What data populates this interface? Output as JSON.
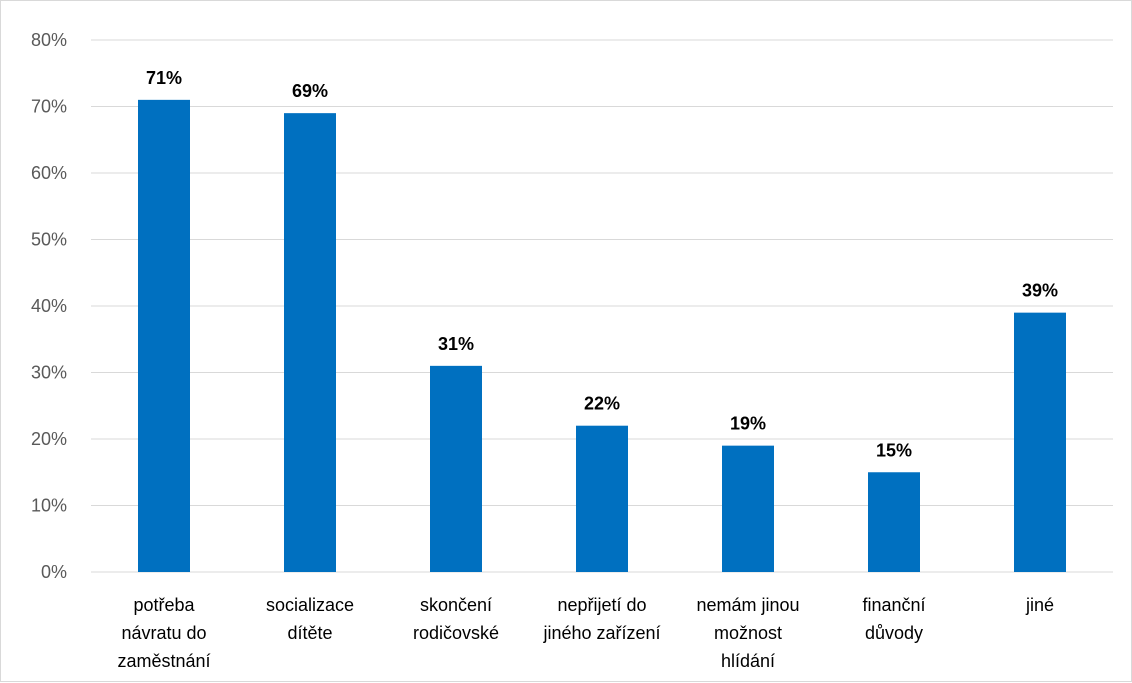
{
  "chart_data": {
    "type": "bar",
    "categories": [
      [
        "potřeba",
        "návratu do",
        "zaměstnání"
      ],
      [
        "socializace",
        "dítěte"
      ],
      [
        "skončení",
        "rodičovské"
      ],
      [
        "nepřijetí do",
        "jiného zařízení"
      ],
      [
        "nemám jinou",
        "možnost",
        "hlídání"
      ],
      [
        "finanční",
        "důvody"
      ],
      [
        "jiné"
      ]
    ],
    "values": [
      71,
      69,
      31,
      22,
      19,
      15,
      39
    ],
    "data_labels": [
      "71%",
      "69%",
      "31%",
      "22%",
      "19%",
      "15%",
      "39%"
    ],
    "y_ticks": [
      "0%",
      "10%",
      "20%",
      "30%",
      "40%",
      "50%",
      "60%",
      "70%",
      "80%"
    ],
    "ylim": [
      0,
      80
    ],
    "grid": true,
    "bar_color": "#0070c0",
    "grid_color": "#d9d9d9"
  }
}
